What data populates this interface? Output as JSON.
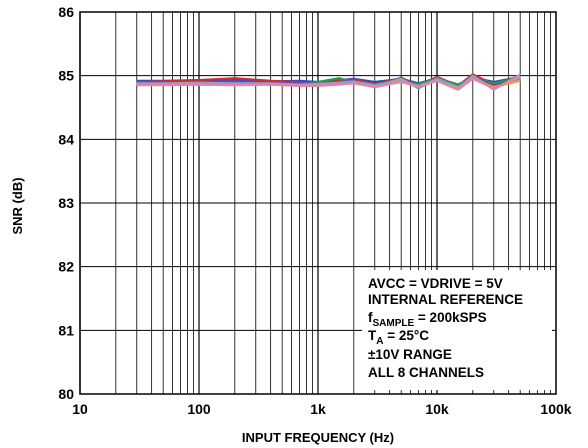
{
  "chart_data": {
    "type": "line",
    "xscale": "log",
    "xlim": [
      10,
      100000
    ],
    "ylim": [
      80,
      86
    ],
    "x_ticks": [
      10,
      100,
      1000,
      10000,
      100000
    ],
    "x_tick_labels": [
      "10",
      "100",
      "1k",
      "10k",
      "100k"
    ],
    "y_ticks": [
      80,
      81,
      82,
      83,
      84,
      85,
      86
    ],
    "y_tick_labels": [
      "80",
      "81",
      "82",
      "83",
      "84",
      "85",
      "86"
    ],
    "xlabel": "INPUT FREQUENCY (Hz)",
    "ylabel": "SNR (dB)",
    "grid": true,
    "annotation": {
      "line1": "AVCC = VDRIVE = 5V",
      "line2": "INTERNAL REFERENCE",
      "line3_main": "f",
      "line3_sub": "SAMPLE",
      "line3_rest": " = 200kSPS",
      "line4_main": "T",
      "line4_sub": "A",
      "line4_rest": " = 25°C",
      "line5": "±10V RANGE",
      "line6": "ALL 8 CHANNELS"
    },
    "series": [
      {
        "color": "#1f4fd6",
        "x": [
          30,
          50,
          100,
          200,
          400,
          700,
          1000,
          1500,
          2000,
          3000,
          5000,
          7000,
          10000,
          15000,
          20000,
          30000,
          50000
        ],
        "y": [
          84.92,
          84.92,
          84.93,
          84.93,
          84.91,
          84.92,
          84.9,
          84.93,
          84.95,
          84.9,
          84.95,
          84.88,
          84.96,
          84.86,
          84.97,
          84.9,
          84.98
        ]
      },
      {
        "color": "#d42a2a",
        "x": [
          30,
          50,
          100,
          200,
          400,
          700,
          1000,
          1500,
          2000,
          3000,
          5000,
          7000,
          10000,
          15000,
          20000,
          30000,
          50000
        ],
        "y": [
          84.9,
          84.91,
          84.93,
          84.96,
          84.92,
          84.9,
          84.88,
          84.92,
          84.94,
          84.87,
          84.96,
          84.85,
          84.98,
          84.84,
          85.02,
          84.86,
          85.0
        ]
      },
      {
        "color": "#2a9a3a",
        "x": [
          30,
          50,
          100,
          200,
          400,
          700,
          1000,
          1500,
          2000,
          3000,
          5000,
          7000,
          10000,
          15000,
          20000,
          30000,
          50000
        ],
        "y": [
          84.88,
          84.88,
          84.87,
          84.88,
          84.86,
          84.86,
          84.9,
          84.96,
          84.9,
          84.86,
          84.93,
          84.87,
          84.95,
          84.85,
          84.96,
          84.88,
          84.97
        ]
      },
      {
        "color": "#6a4aa8",
        "x": [
          30,
          50,
          100,
          200,
          400,
          700,
          1000,
          1500,
          2000,
          3000,
          5000,
          7000,
          10000,
          15000,
          20000,
          30000,
          50000
        ],
        "y": [
          84.89,
          84.89,
          84.9,
          84.91,
          84.89,
          84.88,
          84.87,
          84.9,
          84.92,
          84.82,
          84.97,
          84.83,
          84.94,
          84.8,
          84.98,
          84.84,
          84.95
        ]
      },
      {
        "color": "#3ab0c0",
        "x": [
          30,
          50,
          100,
          200,
          400,
          700,
          1000,
          1500,
          2000,
          3000,
          5000,
          7000,
          10000,
          15000,
          20000,
          30000,
          50000
        ],
        "y": [
          84.87,
          84.87,
          84.88,
          84.87,
          84.87,
          84.85,
          84.86,
          84.88,
          84.9,
          84.84,
          84.95,
          84.8,
          84.96,
          84.82,
          84.99,
          84.8,
          84.96
        ]
      },
      {
        "color": "#f0a040",
        "x": [
          30,
          50,
          100,
          200,
          400,
          700,
          1000,
          1500,
          2000,
          3000,
          5000,
          7000,
          10000,
          15000,
          20000,
          30000,
          50000
        ],
        "y": [
          84.86,
          84.86,
          84.86,
          84.86,
          84.86,
          84.84,
          84.85,
          84.87,
          84.88,
          84.83,
          84.94,
          84.82,
          84.93,
          84.81,
          84.95,
          84.82,
          84.92
        ]
      },
      {
        "color": "#8aa0d0",
        "x": [
          30,
          50,
          100,
          200,
          400,
          700,
          1000,
          1500,
          2000,
          3000,
          5000,
          7000,
          10000,
          15000,
          20000,
          30000,
          50000
        ],
        "y": [
          84.88,
          84.88,
          84.89,
          84.88,
          84.88,
          84.86,
          84.87,
          84.89,
          84.91,
          84.85,
          84.92,
          84.84,
          84.94,
          84.79,
          85.0,
          84.78,
          85.02
        ]
      },
      {
        "color": "#f080a0",
        "x": [
          30,
          50,
          100,
          200,
          400,
          700,
          1000,
          1500,
          2000,
          3000,
          5000,
          7000,
          10000,
          15000,
          20000,
          30000,
          50000
        ],
        "y": [
          84.85,
          84.85,
          84.86,
          84.85,
          84.86,
          84.84,
          84.84,
          84.86,
          84.88,
          84.82,
          84.9,
          84.82,
          84.92,
          84.78,
          84.95,
          84.8,
          84.98
        ]
      }
    ]
  }
}
